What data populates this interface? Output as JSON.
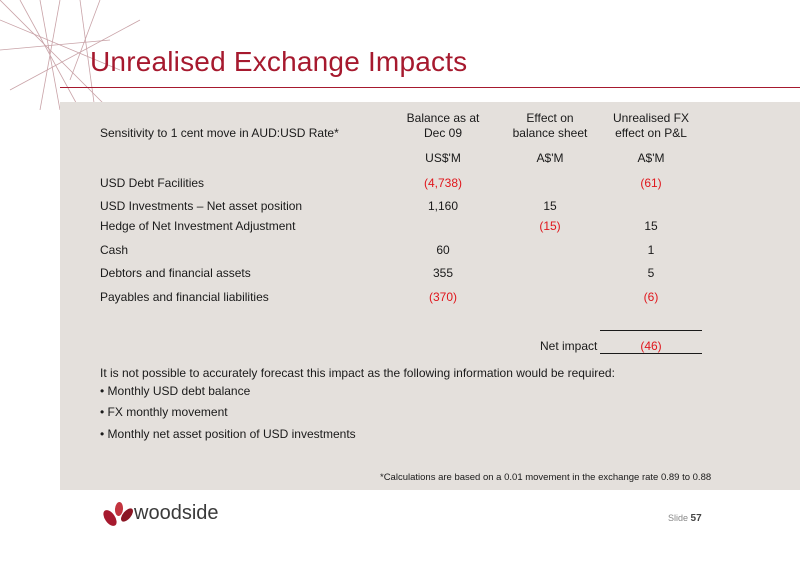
{
  "title": "Unrealised Exchange Impacts",
  "table": {
    "header_label": "Sensitivity to 1 cent move in AUD:USD Rate*",
    "columns": [
      {
        "line1": "Balance as at",
        "line2": "Dec 09",
        "unit": "US$'M"
      },
      {
        "line1": "Effect on",
        "line2": "balance sheet",
        "unit": "A$'M"
      },
      {
        "line1": "Unrealised FX",
        "line2": "effect on P&L",
        "unit": "A$'M"
      }
    ],
    "rows": [
      {
        "label": "USD Debt Facilities",
        "c1": "(4,738)",
        "c2": "",
        "c3": "(61)"
      },
      {
        "label": "USD Investments – Net asset position",
        "c1": "1,160",
        "c2": "15",
        "c3": ""
      },
      {
        "label": "Hedge of Net Investment Adjustment",
        "c1": "",
        "c2": "(15)",
        "c3": "15"
      },
      {
        "label": "Cash",
        "c1": "60",
        "c2": "",
        "c3": "1"
      },
      {
        "label": "Debtors and financial assets",
        "c1": "355",
        "c2": "",
        "c3": "5"
      },
      {
        "label": "Payables and financial liabilities",
        "c1": "(370)",
        "c2": "",
        "c3": "(6)"
      }
    ],
    "net_impact_label": "Net impact",
    "net_impact_value": "(46)"
  },
  "note": "It is not possible to accurately forecast this impact as the following information would be required:",
  "bullets": [
    "• Monthly USD debt balance",
    "• FX monthly movement",
    "• Monthly net asset position of USD investments"
  ],
  "footnote": "*Calculations are based on a 0.01 movement in the exchange rate 0.89 to 0.88",
  "logo_text": "woodside",
  "slide_label": "Slide",
  "slide_number": "57",
  "colors": {
    "accent": "#a6192e",
    "negative": "#e0161c",
    "panel": "#e4e0dc"
  }
}
